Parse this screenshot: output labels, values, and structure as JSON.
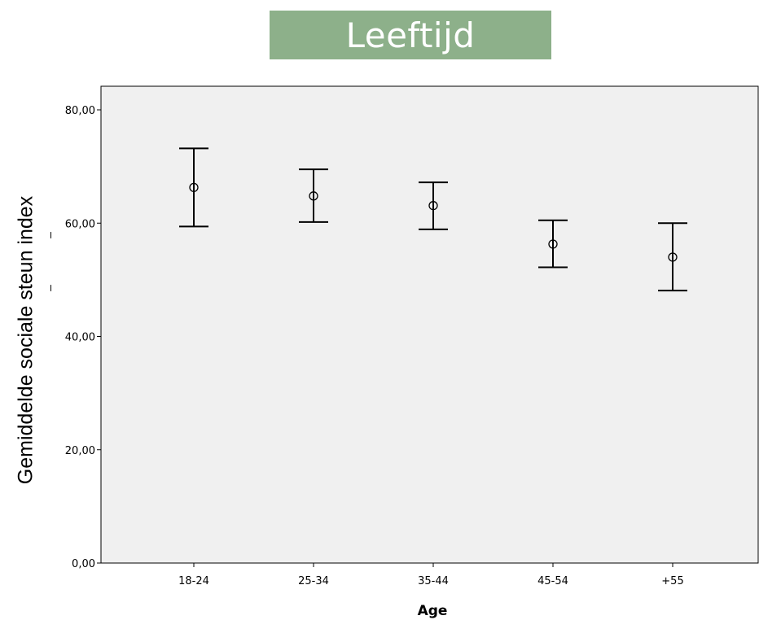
{
  "title": "Leeftijd",
  "chart_data": {
    "type": "errorbar",
    "title": "Leeftijd",
    "xlabel": "Age",
    "ylabel": "Gemiddelde sociale steun index",
    "ylim": [
      0,
      80
    ],
    "yticks": [
      "0,00",
      "20,00",
      "40,00",
      "60,00",
      "80,00"
    ],
    "categories": [
      "18-24",
      "25-34",
      "35-44",
      "45-54",
      "+55"
    ],
    "series": [
      {
        "values": [
          66.3,
          64.8,
          63.1,
          56.3,
          54.0
        ],
        "lower": [
          59.4,
          60.2,
          58.9,
          52.2,
          48.1
        ],
        "upper": [
          73.2,
          69.5,
          67.2,
          60.5,
          60.0
        ]
      }
    ],
    "grid": false,
    "legend": "none",
    "plot_background": "#f0f0f0"
  }
}
